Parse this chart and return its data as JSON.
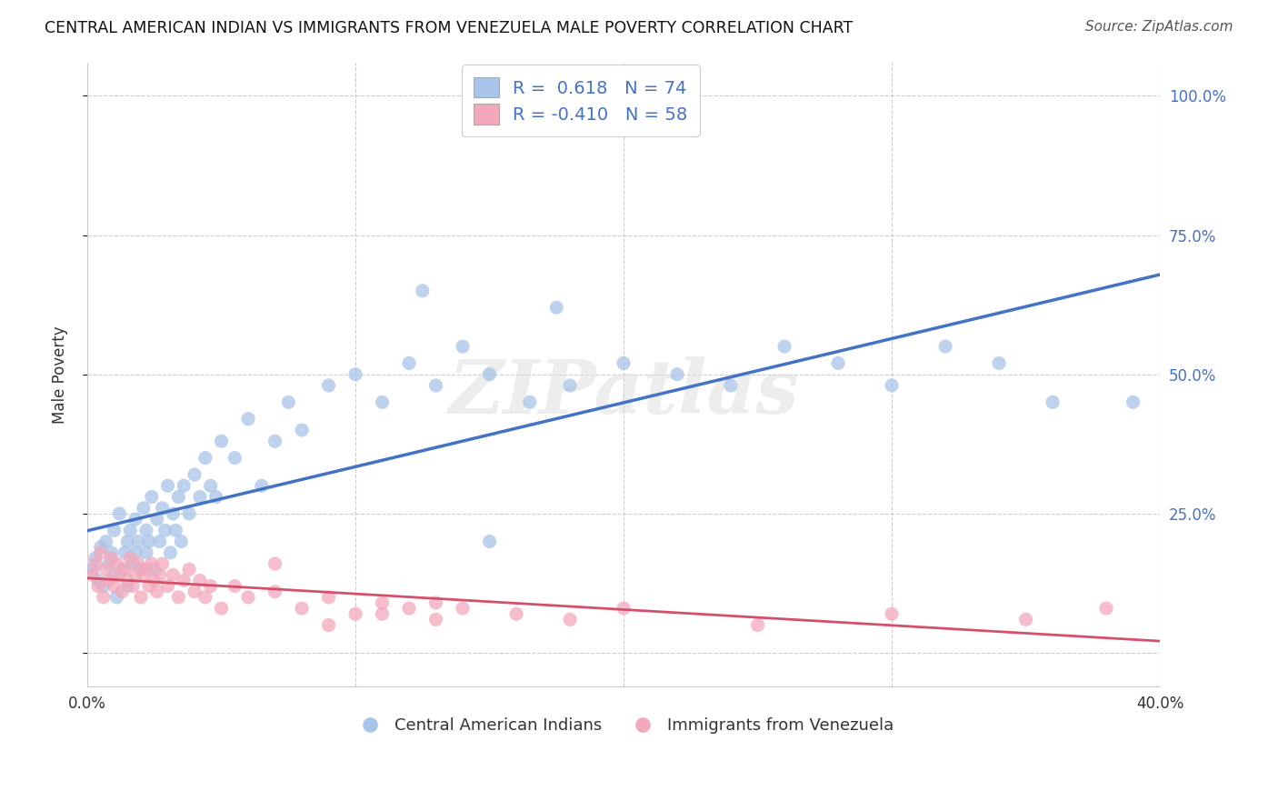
{
  "title": "CENTRAL AMERICAN INDIAN VS IMMIGRANTS FROM VENEZUELA MALE POVERTY CORRELATION CHART",
  "source": "Source: ZipAtlas.com",
  "ylabel": "Male Poverty",
  "yticks": [
    0.0,
    0.25,
    0.5,
    0.75,
    1.0
  ],
  "ytick_labels": [
    "",
    "25.0%",
    "50.0%",
    "75.0%",
    "100.0%"
  ],
  "xmin": 0.0,
  "xmax": 0.4,
  "ymin": -0.06,
  "ymax": 1.06,
  "blue_R": "0.618",
  "blue_N": "74",
  "pink_R": "-0.410",
  "pink_N": "58",
  "blue_color": "#a8c4e8",
  "pink_color": "#f4a8bc",
  "blue_line_color": "#4472c4",
  "pink_line_color": "#d4506a",
  "text_color_blue": "#4472c4",
  "text_color_dark": "#333333",
  "watermark": "ZIPatlas",
  "legend_label_blue": "Central American Indians",
  "legend_label_pink": "Immigrants from Venezuela",
  "blue_scatter_x": [
    0.002,
    0.003,
    0.004,
    0.005,
    0.006,
    0.007,
    0.008,
    0.009,
    0.01,
    0.01,
    0.011,
    0.012,
    0.013,
    0.014,
    0.015,
    0.015,
    0.016,
    0.017,
    0.018,
    0.018,
    0.019,
    0.02,
    0.021,
    0.022,
    0.022,
    0.023,
    0.024,
    0.025,
    0.026,
    0.027,
    0.028,
    0.029,
    0.03,
    0.031,
    0.032,
    0.033,
    0.034,
    0.035,
    0.036,
    0.038,
    0.04,
    0.042,
    0.044,
    0.046,
    0.048,
    0.05,
    0.055,
    0.06,
    0.065,
    0.07,
    0.075,
    0.08,
    0.09,
    0.1,
    0.11,
    0.12,
    0.13,
    0.14,
    0.15,
    0.165,
    0.18,
    0.2,
    0.22,
    0.24,
    0.26,
    0.28,
    0.3,
    0.32,
    0.34,
    0.36,
    0.125,
    0.15,
    0.175,
    0.39
  ],
  "blue_scatter_y": [
    0.15,
    0.17,
    0.13,
    0.19,
    0.12,
    0.2,
    0.16,
    0.18,
    0.14,
    0.22,
    0.1,
    0.25,
    0.15,
    0.18,
    0.2,
    0.12,
    0.22,
    0.16,
    0.24,
    0.18,
    0.2,
    0.15,
    0.26,
    0.18,
    0.22,
    0.2,
    0.28,
    0.15,
    0.24,
    0.2,
    0.26,
    0.22,
    0.3,
    0.18,
    0.25,
    0.22,
    0.28,
    0.2,
    0.3,
    0.25,
    0.32,
    0.28,
    0.35,
    0.3,
    0.28,
    0.38,
    0.35,
    0.42,
    0.3,
    0.38,
    0.45,
    0.4,
    0.48,
    0.5,
    0.45,
    0.52,
    0.48,
    0.55,
    0.5,
    0.45,
    0.48,
    0.52,
    0.5,
    0.48,
    0.55,
    0.52,
    0.48,
    0.55,
    0.52,
    0.45,
    0.65,
    0.2,
    0.62,
    0.45
  ],
  "pink_scatter_x": [
    0.002,
    0.003,
    0.004,
    0.005,
    0.006,
    0.007,
    0.008,
    0.009,
    0.01,
    0.011,
    0.012,
    0.013,
    0.014,
    0.015,
    0.016,
    0.017,
    0.018,
    0.019,
    0.02,
    0.021,
    0.022,
    0.023,
    0.024,
    0.025,
    0.026,
    0.027,
    0.028,
    0.03,
    0.032,
    0.034,
    0.036,
    0.038,
    0.04,
    0.042,
    0.044,
    0.046,
    0.05,
    0.055,
    0.06,
    0.07,
    0.08,
    0.09,
    0.1,
    0.11,
    0.12,
    0.13,
    0.14,
    0.16,
    0.18,
    0.2,
    0.25,
    0.3,
    0.35,
    0.38,
    0.07,
    0.09,
    0.11,
    0.13
  ],
  "pink_scatter_y": [
    0.14,
    0.16,
    0.12,
    0.18,
    0.1,
    0.15,
    0.13,
    0.17,
    0.12,
    0.16,
    0.14,
    0.11,
    0.15,
    0.13,
    0.17,
    0.12,
    0.14,
    0.16,
    0.1,
    0.14,
    0.15,
    0.12,
    0.16,
    0.13,
    0.11,
    0.14,
    0.16,
    0.12,
    0.14,
    0.1,
    0.13,
    0.15,
    0.11,
    0.13,
    0.1,
    0.12,
    0.08,
    0.12,
    0.1,
    0.11,
    0.08,
    0.1,
    0.07,
    0.09,
    0.08,
    0.06,
    0.08,
    0.07,
    0.06,
    0.08,
    0.05,
    0.07,
    0.06,
    0.08,
    0.16,
    0.05,
    0.07,
    0.09
  ]
}
